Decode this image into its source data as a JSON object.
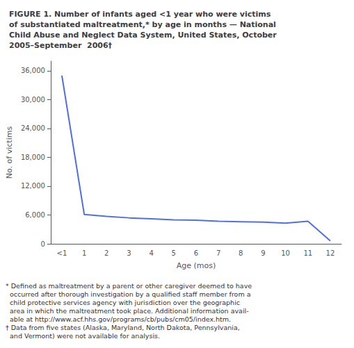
{
  "chart_data": {
    "type": "line",
    "title": "FIGURE 1. Number of infants aged <1 year who were victims\nof substantiated maltreatment,* by age in months — National\nChild Abuse and Neglect Data System, United States, October\n2005–September  2006†",
    "xlabel": "Age (mos)",
    "ylabel": "No. of victims",
    "categories": [
      "<1",
      "1",
      "2",
      "3",
      "4",
      "5",
      "6",
      "7",
      "8",
      "9",
      "10",
      "11",
      "12"
    ],
    "values": [
      35000,
      6100,
      5700,
      5400,
      5200,
      5000,
      4900,
      4700,
      4600,
      4500,
      4300,
      4700,
      600
    ],
    "ylim": [
      0,
      38000
    ],
    "yticks": [
      0,
      {
        "value": 6000,
        "label": "6,000"
      },
      {
        "value": 12000,
        "label": "12,000"
      },
      {
        "value": 18000,
        "label": "18,000"
      },
      {
        "value": 24000,
        "label": "24,000"
      },
      {
        "value": 30000,
        "label": "30,000"
      },
      {
        "value": 36000,
        "label": "36,000"
      }
    ],
    "grid": false,
    "annotations": [
      "* Defined as maltreatment by a parent or other caregiver deemed to have\n  occurred after thorough investigation by a qualified staff member from a\n  child protective services agency with jurisdiction over the geographic\n  area in which the maltreatment took place. Additional information avail-\n  able at http://www.acf.hhs.gov/programs/cb/pubs/cm05/index.htm.\n† Data from five states (Alaska, Maryland, North Dakota, Pennsylvania,\n  and Vermont) were not available for analysis."
    ]
  }
}
